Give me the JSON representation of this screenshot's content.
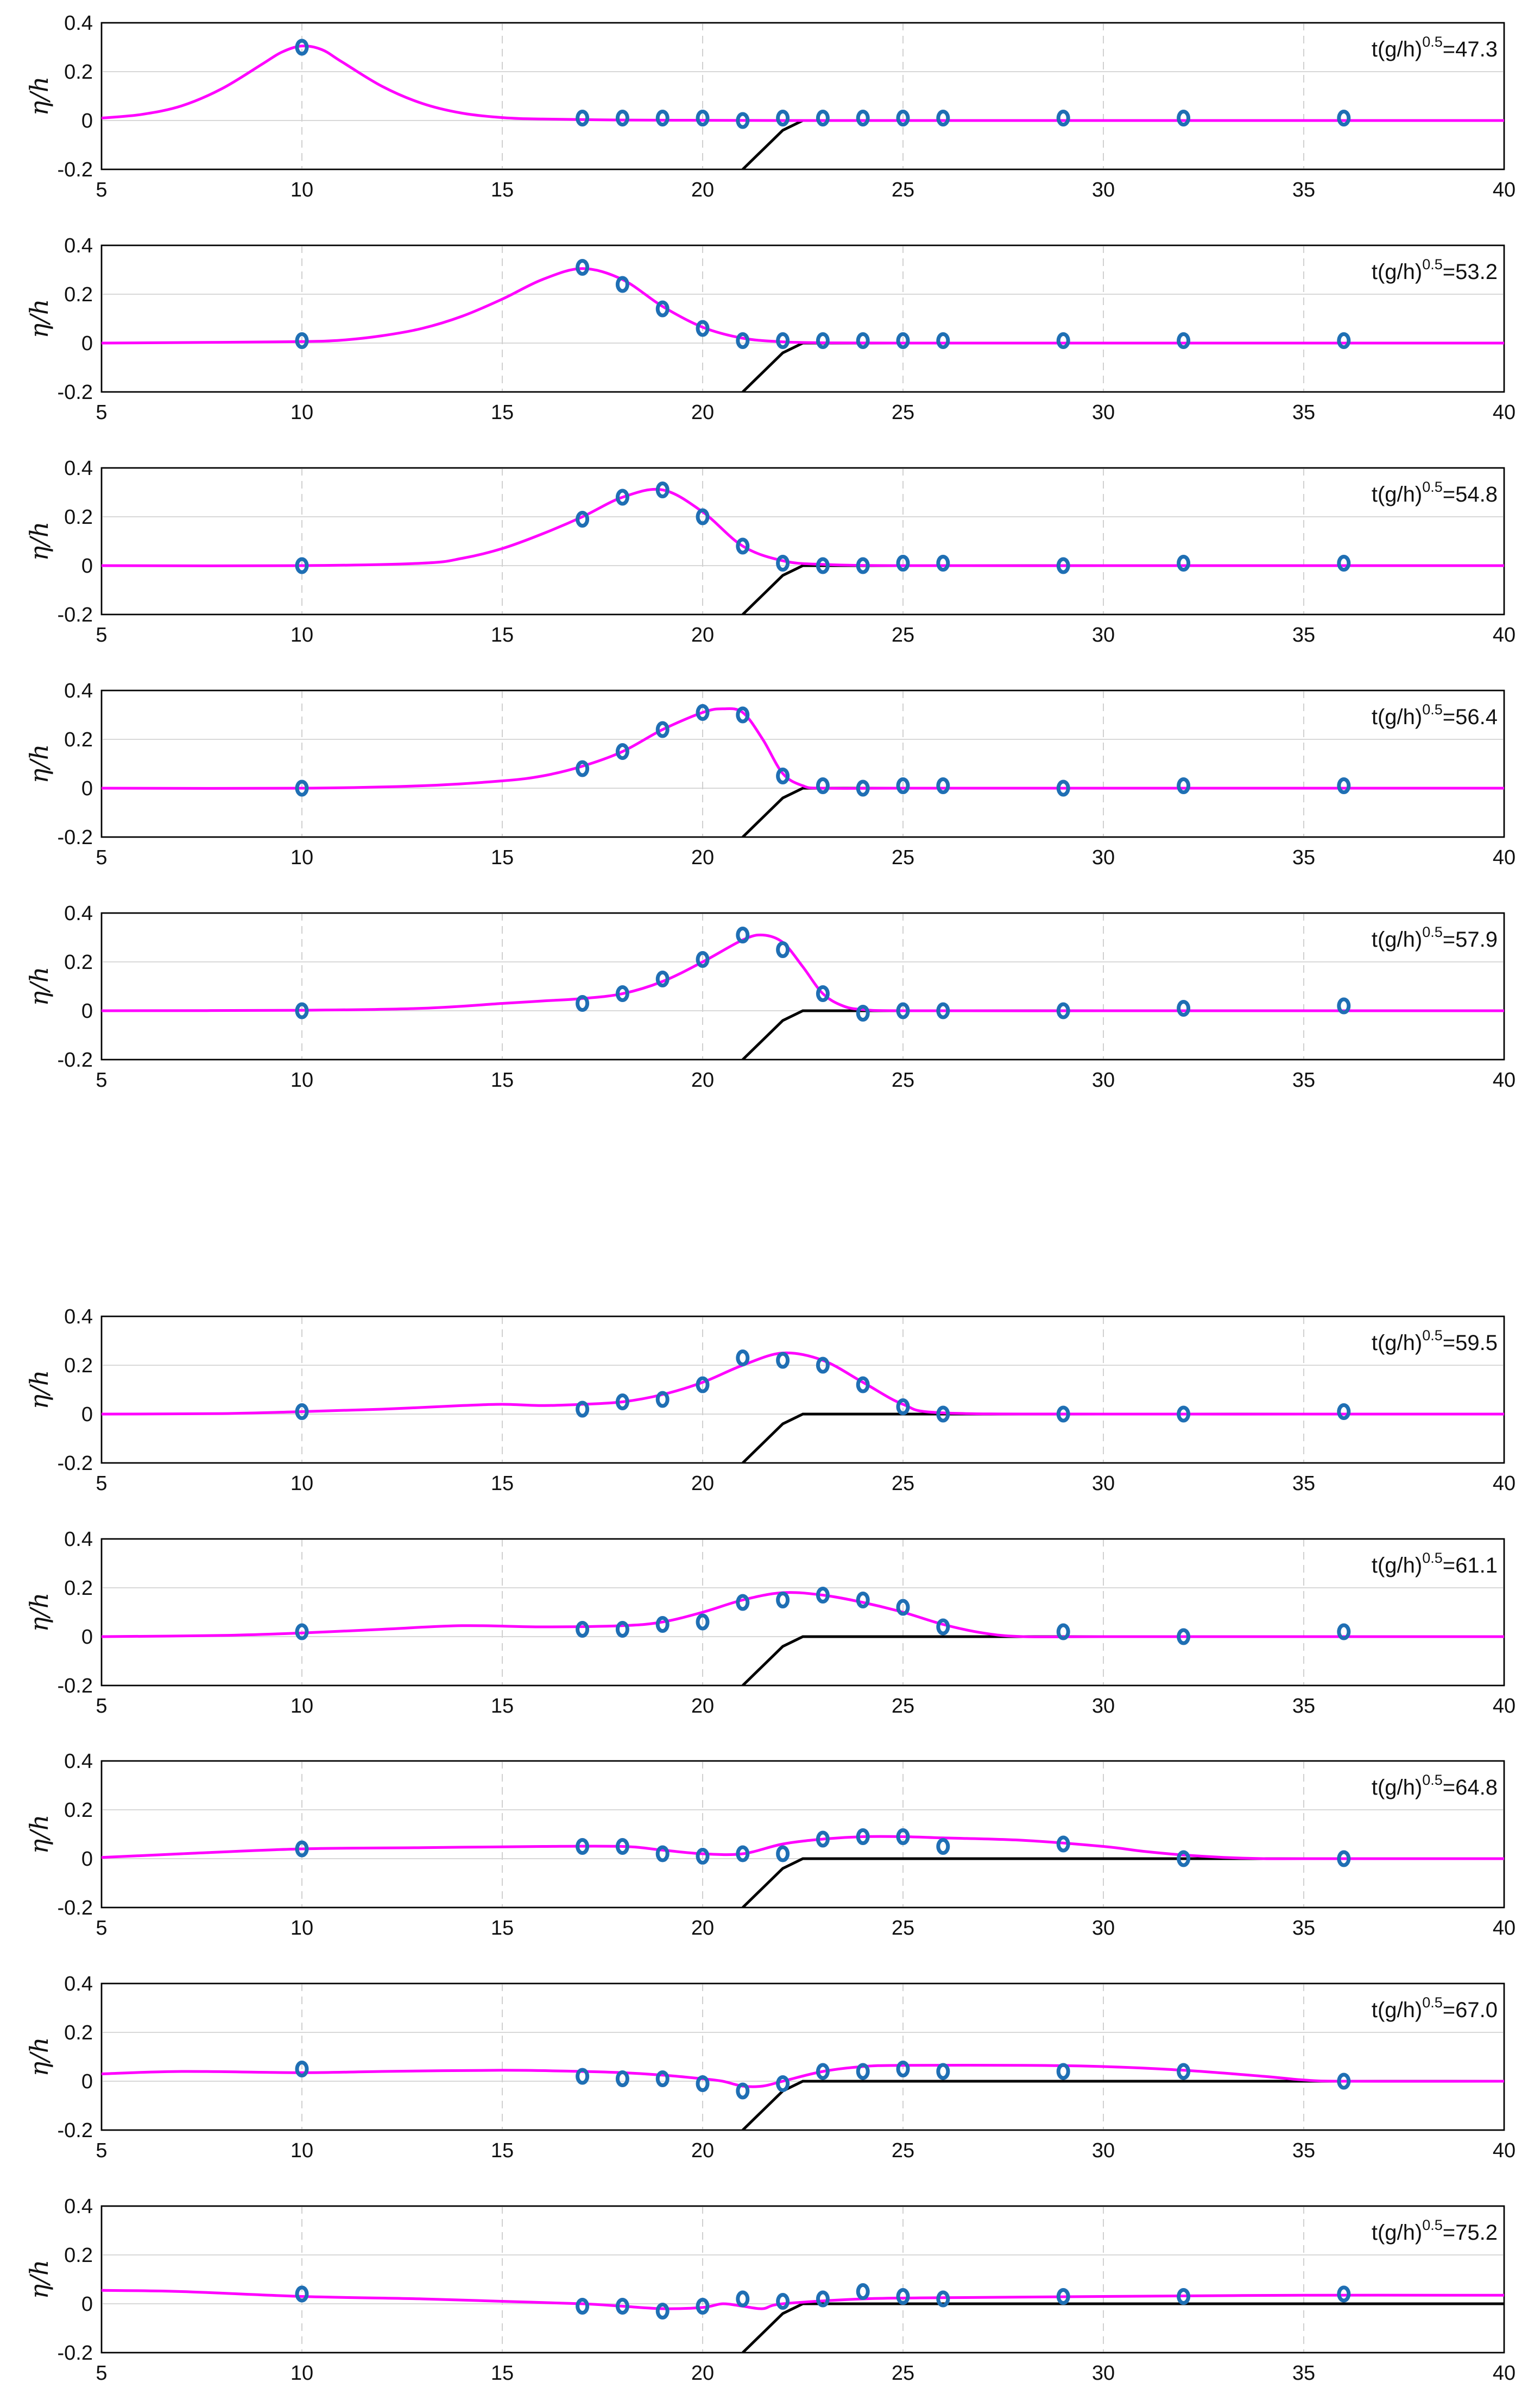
{
  "colors": {
    "model": "#ff00ff",
    "observed": "#1f6fb4",
    "bathymetry": "#000000"
  },
  "chart_data": {
    "type": "line",
    "ylabel": "η/h",
    "xlim": [
      5,
      40
    ],
    "ylim": [
      -0.2,
      0.4
    ],
    "xticks": [
      5,
      10,
      15,
      20,
      25,
      30,
      35,
      40
    ],
    "yticks": [
      -0.2,
      0,
      0.2,
      0.4
    ],
    "ytick_labels": [
      "-0.2",
      "0",
      "0.2",
      "0.4"
    ],
    "gauge_x": [
      10,
      17,
      18,
      19,
      20,
      21,
      22,
      23,
      24,
      25,
      26,
      29,
      32,
      36
    ],
    "bathymetry": {
      "x": [
        21,
        21.5,
        22,
        22.5,
        23,
        40
      ],
      "y": [
        -0.2,
        -0.12,
        -0.04,
        0,
        0,
        0
      ]
    },
    "panels": [
      {
        "label_prefix": "t(g/h)",
        "label_exp": "0.5",
        "label_value": "=47.3",
        "model": {
          "x": [
            5,
            6,
            7,
            8,
            9,
            9.5,
            10,
            10.5,
            11,
            12,
            13,
            14,
            15,
            16,
            18,
            20,
            22,
            25,
            30,
            35,
            40
          ],
          "y": [
            0.01,
            0.025,
            0.06,
            0.13,
            0.23,
            0.28,
            0.305,
            0.29,
            0.24,
            0.14,
            0.07,
            0.03,
            0.012,
            0.006,
            0.002,
            0.001,
            0.0,
            0.0,
            0.0,
            0.0,
            0.0
          ]
        },
        "observed": [
          0.3,
          0.01,
          0.01,
          0.01,
          0.01,
          0.0,
          0.01,
          0.01,
          0.01,
          0.01,
          0.01,
          0.01,
          0.01,
          0.01
        ]
      },
      {
        "label_prefix": "t(g/h)",
        "label_exp": "0.5",
        "label_value": "=53.2",
        "model": {
          "x": [
            5,
            8,
            10,
            11,
            12,
            13,
            14,
            15,
            16,
            17,
            18,
            19,
            20,
            21,
            22,
            23,
            25,
            30,
            35,
            40
          ],
          "y": [
            0.0,
            0.003,
            0.006,
            0.012,
            0.03,
            0.06,
            0.11,
            0.18,
            0.26,
            0.305,
            0.26,
            0.15,
            0.065,
            0.02,
            0.005,
            0.001,
            0.0,
            0.0,
            0.0,
            0.0
          ]
        },
        "observed": [
          0.01,
          0.31,
          0.24,
          0.14,
          0.06,
          0.01,
          0.01,
          0.01,
          0.01,
          0.01,
          0.01,
          0.01,
          0.01,
          0.01
        ]
      },
      {
        "label_prefix": "t(g/h)",
        "label_exp": "0.5",
        "label_value": "=54.8",
        "model": {
          "x": [
            5,
            10,
            13,
            14,
            15,
            16,
            17,
            18,
            19,
            20,
            21,
            22,
            23,
            25,
            30,
            35,
            40
          ],
          "y": [
            0.0,
            0.0,
            0.01,
            0.03,
            0.07,
            0.13,
            0.2,
            0.28,
            0.31,
            0.22,
            0.08,
            0.02,
            0.005,
            0.0,
            0.0,
            0.0,
            0.0
          ]
        },
        "observed": [
          0.0,
          0.19,
          0.28,
          0.31,
          0.2,
          0.08,
          0.01,
          0.0,
          0.0,
          0.01,
          0.01,
          0.0,
          0.01,
          0.01
        ]
      },
      {
        "label_prefix": "t(g/h)",
        "label_exp": "0.5",
        "label_value": "=56.4",
        "model": {
          "x": [
            5,
            10,
            13,
            15,
            16,
            17,
            18,
            19,
            20,
            20.5,
            21,
            21.5,
            22,
            22.5,
            23,
            25,
            30,
            35,
            40
          ],
          "y": [
            0.0,
            0.0,
            0.01,
            0.03,
            0.05,
            0.09,
            0.15,
            0.24,
            0.31,
            0.325,
            0.31,
            0.2,
            0.06,
            0.01,
            0.0,
            0.0,
            0.0,
            0.0,
            0.0
          ]
        },
        "observed": [
          0.0,
          0.08,
          0.15,
          0.24,
          0.31,
          0.3,
          0.05,
          0.01,
          0.0,
          0.01,
          0.01,
          0.0,
          0.01,
          0.01
        ]
      },
      {
        "label_prefix": "t(g/h)",
        "label_exp": "0.5",
        "label_value": "=57.9",
        "model": {
          "x": [
            5,
            10,
            13,
            15,
            16,
            17,
            18,
            19,
            20,
            21,
            21.5,
            22,
            22.5,
            23,
            23.5,
            24,
            25,
            30,
            35,
            40
          ],
          "y": [
            0.0,
            0.002,
            0.01,
            0.03,
            0.04,
            0.05,
            0.07,
            0.12,
            0.2,
            0.29,
            0.31,
            0.28,
            0.18,
            0.07,
            0.02,
            0.005,
            0.0,
            0.0,
            0.0,
            0.0
          ]
        },
        "observed": [
          0.0,
          0.03,
          0.07,
          0.13,
          0.21,
          0.31,
          0.25,
          0.07,
          -0.01,
          0.0,
          0.0,
          0.0,
          0.01,
          0.02
        ]
      },
      {
        "label_prefix": "t(g/h)",
        "label_exp": "0.5",
        "label_value": "=59.5",
        "model": {
          "x": [
            5,
            8,
            10,
            12,
            14,
            15,
            16,
            17,
            18,
            19,
            20,
            21,
            22,
            23,
            24,
            25,
            26,
            30,
            35,
            40
          ],
          "y": [
            0.0,
            0.002,
            0.01,
            0.02,
            0.035,
            0.04,
            0.035,
            0.04,
            0.05,
            0.08,
            0.13,
            0.2,
            0.25,
            0.22,
            0.13,
            0.04,
            0.005,
            0.0,
            0.0,
            0.0
          ]
        },
        "observed": [
          0.01,
          0.02,
          0.05,
          0.06,
          0.12,
          0.23,
          0.22,
          0.2,
          0.12,
          0.03,
          0.0,
          0.0,
          0.0,
          0.01
        ]
      },
      {
        "label_prefix": "t(g/h)",
        "label_exp": "0.5",
        "label_value": "=61.1",
        "model": {
          "x": [
            5,
            8,
            10,
            12,
            14,
            16,
            18,
            19,
            20,
            21,
            22,
            23,
            24,
            25,
            26,
            27,
            28,
            30,
            35,
            40
          ],
          "y": [
            0.0,
            0.005,
            0.015,
            0.03,
            0.045,
            0.04,
            0.045,
            0.06,
            0.1,
            0.15,
            0.18,
            0.17,
            0.14,
            0.1,
            0.05,
            0.015,
            0.0,
            0.0,
            0.0,
            0.0
          ]
        },
        "observed": [
          0.02,
          0.03,
          0.03,
          0.05,
          0.06,
          0.14,
          0.15,
          0.17,
          0.15,
          0.12,
          0.04,
          0.02,
          0.0,
          0.02
        ]
      },
      {
        "label_prefix": "t(g/h)",
        "label_exp": "0.5",
        "label_value": "=64.8",
        "model": {
          "x": [
            5,
            7,
            10,
            13,
            16,
            18,
            19,
            20,
            21,
            22,
            23,
            24,
            25,
            26,
            28,
            30,
            31,
            32,
            33,
            34,
            35,
            40
          ],
          "y": [
            0.005,
            0.02,
            0.04,
            0.045,
            0.05,
            0.05,
            0.035,
            0.02,
            0.02,
            0.06,
            0.08,
            0.09,
            0.09,
            0.085,
            0.075,
            0.05,
            0.03,
            0.015,
            0.005,
            0.0,
            0.0,
            0.0
          ]
        },
        "observed": [
          0.04,
          0.05,
          0.05,
          0.02,
          0.01,
          0.02,
          0.02,
          0.08,
          0.09,
          0.09,
          0.05,
          0.06,
          0.0,
          0.0
        ]
      },
      {
        "label_prefix": "t(g/h)",
        "label_exp": "0.5",
        "label_value": "=67.0",
        "model": {
          "x": [
            5,
            7,
            10,
            12,
            15,
            17,
            18,
            19,
            20,
            20.5,
            21,
            21.5,
            22,
            23,
            24,
            25,
            28,
            30,
            32,
            34,
            35,
            36,
            40
          ],
          "y": [
            0.03,
            0.04,
            0.035,
            0.04,
            0.045,
            0.04,
            0.035,
            0.025,
            0.01,
            0.0,
            -0.02,
            -0.02,
            0.0,
            0.04,
            0.06,
            0.065,
            0.065,
            0.06,
            0.045,
            0.02,
            0.005,
            0.0,
            0.0
          ]
        },
        "observed": [
          0.05,
          0.02,
          0.01,
          0.01,
          -0.01,
          -0.04,
          -0.01,
          0.04,
          0.04,
          0.05,
          0.04,
          0.04,
          0.04,
          0.0
        ]
      },
      {
        "label_prefix": "t(g/h)",
        "label_exp": "0.5",
        "label_value": "=75.2",
        "model": {
          "x": [
            5,
            7,
            10,
            13,
            15,
            17,
            18,
            19,
            20,
            20.5,
            21,
            21.5,
            22,
            24,
            26,
            30,
            35,
            40
          ],
          "y": [
            0.055,
            0.05,
            0.03,
            0.02,
            0.01,
            0.0,
            -0.01,
            -0.02,
            -0.015,
            0.0,
            -0.01,
            -0.02,
            0.0,
            0.02,
            0.025,
            0.03,
            0.035,
            0.035
          ]
        },
        "observed": [
          0.04,
          -0.01,
          -0.01,
          -0.03,
          -0.01,
          0.02,
          0.01,
          0.02,
          0.05,
          0.03,
          0.02,
          0.03,
          0.03,
          0.04
        ]
      }
    ]
  }
}
